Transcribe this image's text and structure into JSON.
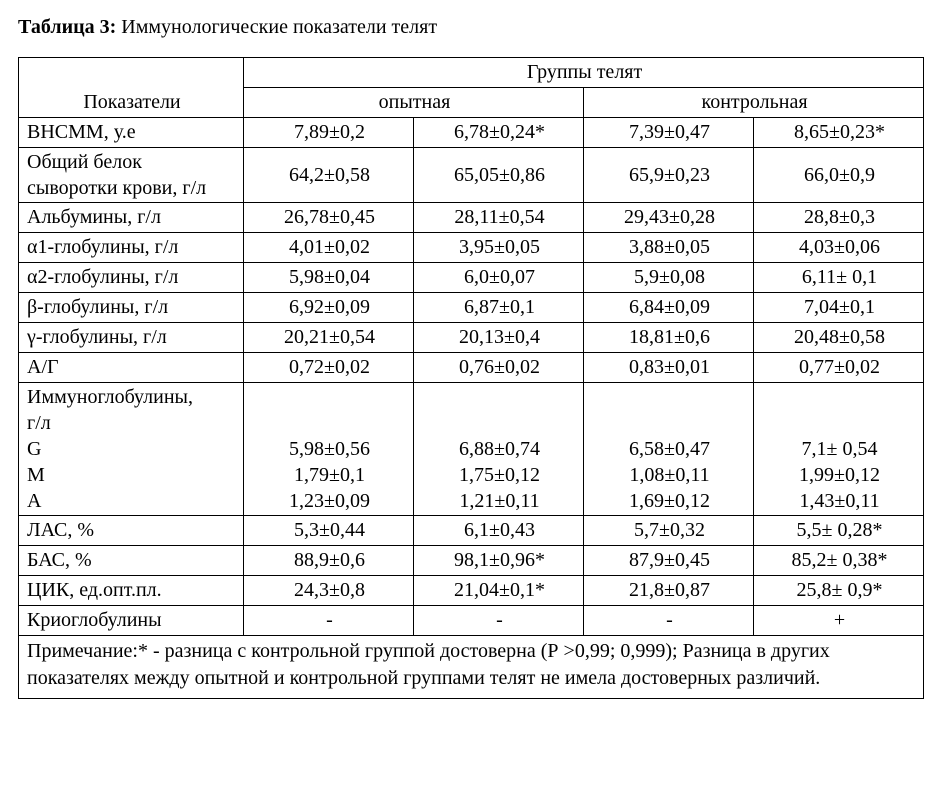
{
  "title_prefix": "Таблица 3:",
  "title_rest": " Иммунологические показатели телят",
  "header": {
    "indicators": "Показатели",
    "groups": "Группы телят",
    "experimental": "опытная",
    "control": "контрольная"
  },
  "rows": [
    {
      "label": "ВНСММ, у.е",
      "v": [
        "7,89±0,2",
        "6,78±0,24*",
        "7,39±0,47",
        "8,65±0,23*"
      ]
    },
    {
      "label": "Общий белок сыворотки крови, г/л",
      "multiline": true,
      "v": [
        "64,2±0,58",
        "65,05±0,86",
        "65,9±0,23",
        "66,0±0,9"
      ]
    },
    {
      "label": "Альбумины, г/л",
      "v": [
        "26,78±0,45",
        "28,11±0,54",
        "29,43±0,28",
        "28,8±0,3"
      ]
    },
    {
      "label": "α1-глобулины, г/л",
      "v": [
        "4,01±0,02",
        "3,95±0,05",
        "3,88±0,05",
        "4,03±0,06"
      ]
    },
    {
      "label": "α2-глобулины, г/л",
      "v": [
        "5,98±0,04",
        "6,0±0,07",
        "5,9±0,08",
        "6,11± 0,1"
      ]
    },
    {
      "label": "β-глобулины, г/л",
      "v": [
        "6,92±0,09",
        "6,87±0,1",
        "6,84±0,09",
        "7,04±0,1"
      ]
    },
    {
      "label": "γ-глобулины, г/л",
      "v": [
        "20,21±0,54",
        "20,13±0,4",
        "18,81±0,6",
        "20,48±0,58"
      ]
    },
    {
      "label": "А/Г",
      "v": [
        "0,72±0,02",
        "0,76±0,02",
        "0,83±0,01",
        "0,77±0,02"
      ]
    }
  ],
  "ig": {
    "label_lines": [
      "Иммуноглобулины,",
      "г/л",
      " G",
      " M",
      "А"
    ],
    "col1": [
      "",
      "",
      "5,98±0,56",
      "1,79±0,1",
      "1,23±0,09"
    ],
    "col2": [
      "",
      "",
      "6,88±0,74",
      "1,75±0,12",
      "1,21±0,11"
    ],
    "col3": [
      "",
      "",
      "6,58±0,47",
      "1,08±0,11",
      "1,69±0,12"
    ],
    "col4": [
      "",
      "",
      "7,1± 0,54",
      "1,99±0,12",
      "1,43±0,11"
    ]
  },
  "rows2": [
    {
      "label": "ЛАС, %",
      "v": [
        "5,3±0,44",
        "6,1±0,43",
        "5,7±0,32",
        "5,5± 0,28*"
      ]
    },
    {
      "label": "БАС, %",
      "v": [
        "88,9±0,6",
        "98,1±0,96*",
        "87,9±0,45",
        "85,2± 0,38*"
      ]
    },
    {
      "label": "ЦИК, ед.опт.пл.",
      "v": [
        "24,3±0,8",
        "21,04±0,1*",
        "21,8±0,87",
        "25,8± 0,9*"
      ]
    },
    {
      "label": "Криоглобулины",
      "v": [
        "-",
        "-",
        "-",
        "+"
      ]
    }
  ],
  "note": "Примечание:* - разница с контрольной группой достоверна (Р >0,99; 0,999); Разница в других показателях  между опытной и контрольной группами телят не имела достоверных различий."
}
